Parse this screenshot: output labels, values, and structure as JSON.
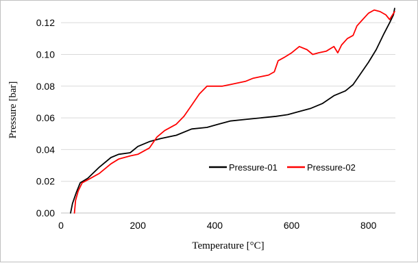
{
  "chart_data": {
    "type": "line",
    "xlabel": "Temperature [°C]",
    "ylabel": "Pressure [bar]",
    "xlim": [
      0,
      870
    ],
    "ylim": [
      0.0,
      0.13
    ],
    "xticks": [
      0,
      200,
      400,
      600,
      800
    ],
    "yticks": [
      0.0,
      0.02,
      0.04,
      0.06,
      0.08,
      0.1,
      0.12
    ],
    "ytick_labels": [
      "0.00",
      "0.02",
      "0.04",
      "0.06",
      "0.08",
      "0.10",
      "0.12"
    ],
    "grid": "horizontal",
    "legend_position": "lower-right",
    "series": [
      {
        "name": "Pressure-01",
        "color": "#000000",
        "points": [
          [
            25,
            0.0
          ],
          [
            30,
            0.006
          ],
          [
            40,
            0.013
          ],
          [
            50,
            0.019
          ],
          [
            70,
            0.022
          ],
          [
            100,
            0.029
          ],
          [
            130,
            0.035
          ],
          [
            150,
            0.037
          ],
          [
            180,
            0.038
          ],
          [
            200,
            0.042
          ],
          [
            230,
            0.045
          ],
          [
            260,
            0.047
          ],
          [
            300,
            0.049
          ],
          [
            340,
            0.053
          ],
          [
            380,
            0.054
          ],
          [
            410,
            0.056
          ],
          [
            440,
            0.058
          ],
          [
            480,
            0.059
          ],
          [
            520,
            0.06
          ],
          [
            560,
            0.061
          ],
          [
            590,
            0.062
          ],
          [
            620,
            0.064
          ],
          [
            650,
            0.066
          ],
          [
            680,
            0.069
          ],
          [
            710,
            0.074
          ],
          [
            740,
            0.077
          ],
          [
            760,
            0.081
          ],
          [
            780,
            0.088
          ],
          [
            800,
            0.095
          ],
          [
            820,
            0.103
          ],
          [
            840,
            0.113
          ],
          [
            855,
            0.12
          ],
          [
            865,
            0.125
          ],
          [
            868,
            0.129
          ]
        ]
      },
      {
        "name": "Pressure-02",
        "color": "#ff0000",
        "points": [
          [
            35,
            0.0
          ],
          [
            38,
            0.008
          ],
          [
            45,
            0.014
          ],
          [
            55,
            0.019
          ],
          [
            70,
            0.021
          ],
          [
            100,
            0.025
          ],
          [
            130,
            0.031
          ],
          [
            150,
            0.034
          ],
          [
            180,
            0.036
          ],
          [
            200,
            0.037
          ],
          [
            230,
            0.041
          ],
          [
            250,
            0.048
          ],
          [
            270,
            0.052
          ],
          [
            300,
            0.056
          ],
          [
            320,
            0.061
          ],
          [
            340,
            0.068
          ],
          [
            360,
            0.075
          ],
          [
            380,
            0.08
          ],
          [
            400,
            0.08
          ],
          [
            420,
            0.08
          ],
          [
            440,
            0.081
          ],
          [
            460,
            0.082
          ],
          [
            480,
            0.083
          ],
          [
            500,
            0.085
          ],
          [
            520,
            0.086
          ],
          [
            540,
            0.087
          ],
          [
            555,
            0.089
          ],
          [
            565,
            0.096
          ],
          [
            580,
            0.098
          ],
          [
            600,
            0.101
          ],
          [
            620,
            0.105
          ],
          [
            640,
            0.103
          ],
          [
            655,
            0.1
          ],
          [
            670,
            0.101
          ],
          [
            690,
            0.102
          ],
          [
            710,
            0.105
          ],
          [
            720,
            0.101
          ],
          [
            730,
            0.106
          ],
          [
            745,
            0.11
          ],
          [
            760,
            0.112
          ],
          [
            770,
            0.118
          ],
          [
            785,
            0.122
          ],
          [
            800,
            0.126
          ],
          [
            815,
            0.128
          ],
          [
            830,
            0.127
          ],
          [
            845,
            0.125
          ],
          [
            855,
            0.122
          ],
          [
            868,
            0.127
          ]
        ]
      }
    ]
  }
}
